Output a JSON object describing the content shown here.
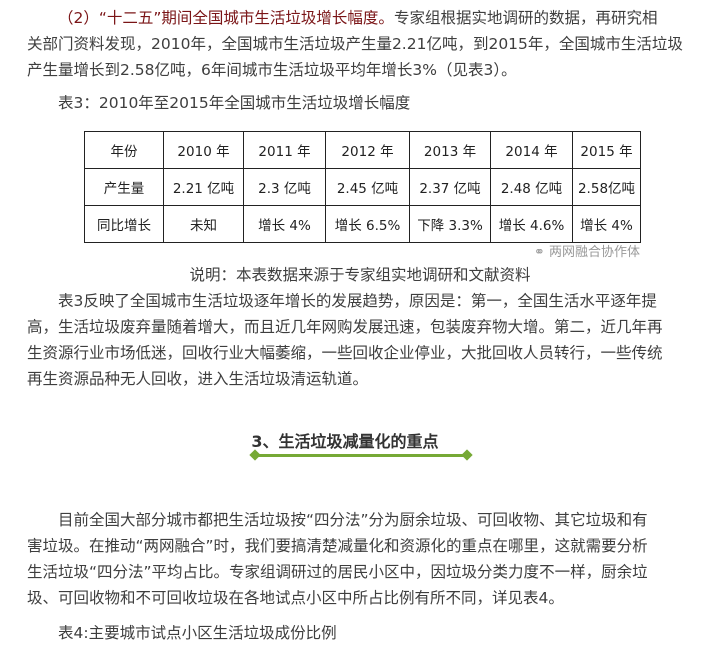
{
  "para1": {
    "lines": [
      {
        "red": "（2）“十二五”期间全国城市生活垃圾增长幅度。",
        "text": "专家组根据实地调研的数据，再研究相"
      },
      {
        "red": "",
        "text": "关部门资料发现，2010年，全国城市生活垃圾产生量2.21亿吨，到2015年，全国城市生活垃圾"
      },
      {
        "red": "",
        "text": "产生量增长到2.58亿吨，6年间城市生活垃圾平均年增长3%（见表3）。"
      }
    ]
  },
  "table3": {
    "caption": "表3：2010年至2015年全国城市生活垃圾增长幅度",
    "rows": [
      [
        "年份",
        "2010 年",
        "2011 年",
        "2012 年",
        "2013 年",
        "2014 年",
        "2015 年"
      ],
      [
        "产生量",
        "2.21 亿吨",
        "2.3 亿吨",
        "2.45 亿吨",
        "2.37 亿吨",
        "2.48 亿吨",
        "2.58亿吨"
      ],
      [
        "同比增长",
        "未知",
        "增长 4%",
        "增长 6.5%",
        "下降 3.3%",
        "增长 4.6%",
        "增长 4%"
      ]
    ],
    "note": "说明：本表数据来源于专家组实地调研和文献资料",
    "watermark": "两网融合协作体"
  },
  "para2": {
    "lines": [
      "表3反映了全国城市生活垃圾逐年增长的发展趋势，原因是：第一，全国生活水平逐年提",
      "高，生活垃圾废弃量随着增大，而且近几年网购发展迅速，包装废弃物大增。第二，近几年再",
      "生资源行业市场低迷，回收行业大幅萎缩，一些回收企业停业，大批回收人员转行，一些传统",
      "再生资源品种无人回收，进入生活垃圾清运轨道。"
    ]
  },
  "section": {
    "heading": "3、生活垃圾减量化的重点",
    "accent": "#76a935"
  },
  "para3": {
    "lines": [
      "目前全国大部分城市都把生活垃圾按“四分法”分为厨余垃圾、可回收物、其它垃圾和有",
      "害垃圾。在推动“两网融合”时，我们要搞清楚减量化和资源化的重点在哪里，这就需要分析",
      "生活垃圾“四分法”平均占比。专家组调研过的居民小区中，因垃圾分类力度不一样，厨余垃",
      "圾、可回收物和不可回收垃圾在各地试点小区中所占比例有所不同，详见表4。"
    ]
  },
  "table4": {
    "caption": "表4:主要城市试点小区生活垃圾成份比例"
  }
}
